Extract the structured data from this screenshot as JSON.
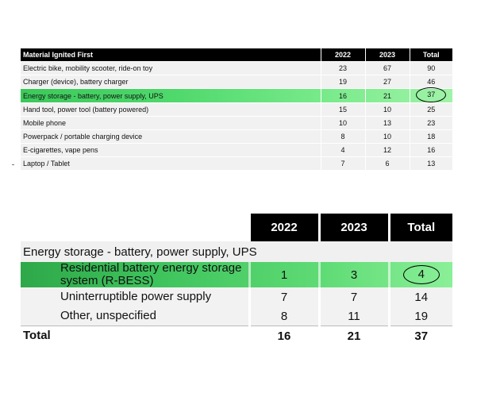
{
  "top_table": {
    "headers": [
      "Material Ignited First",
      "2022",
      "2023",
      "Total"
    ],
    "rows": [
      {
        "label": "Electric bike, mobility scooter, ride-on toy",
        "y2022": "23",
        "y2023": "67",
        "total": "90"
      },
      {
        "label": "Charger (device), battery charger",
        "y2022": "19",
        "y2023": "27",
        "total": "46"
      },
      {
        "label": "Energy storage - battery, power supply, UPS",
        "y2022": "16",
        "y2023": "21",
        "total": "37"
      },
      {
        "label": "Hand tool, power tool (battery powered)",
        "y2022": "15",
        "y2023": "10",
        "total": "25"
      },
      {
        "label": "Mobile phone",
        "y2022": "10",
        "y2023": "13",
        "total": "23"
      },
      {
        "label": "Powerpack / portable charging device",
        "y2022": "8",
        "y2023": "10",
        "total": "18"
      },
      {
        "label": "E-cigarettes, vape pens",
        "y2022": "4",
        "y2023": "12",
        "total": "16"
      },
      {
        "label": "Laptop / Tablet",
        "y2022": "7",
        "y2023": "6",
        "total": "13"
      }
    ],
    "highlight_color": "#4fd86c"
  },
  "bottom_table": {
    "headers": [
      "2022",
      "2023",
      "Total"
    ],
    "category": "Energy storage - battery, power supply, UPS",
    "rows": [
      {
        "label": "Residential battery energy storage system (R-BESS)",
        "y2022": "1",
        "y2023": "3",
        "total": "4"
      },
      {
        "label": "Uninterruptible power supply",
        "y2022": "7",
        "y2023": "7",
        "total": "14"
      },
      {
        "label": "Other, unspecified",
        "y2022": "8",
        "y2023": "11",
        "total": "19"
      }
    ],
    "total_row": {
      "label": "Total",
      "y2022": "16",
      "y2023": "21",
      "total": "37"
    },
    "highlight_color": "#3dc25b"
  }
}
